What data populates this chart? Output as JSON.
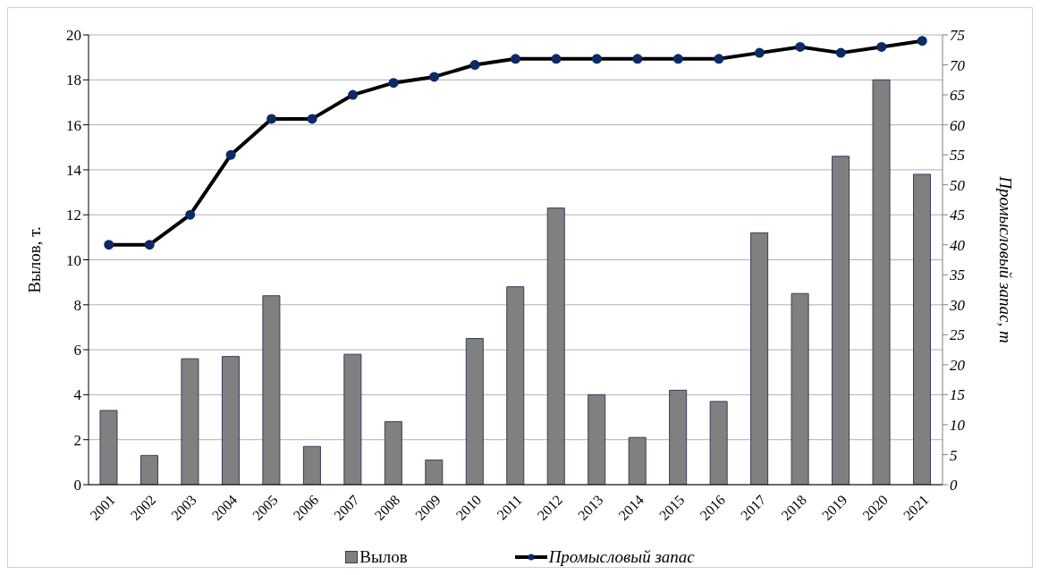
{
  "chart_data": {
    "type": "bar",
    "categories": [
      "2001",
      "2002",
      "2003",
      "2004",
      "2005",
      "2006",
      "2007",
      "2008",
      "2009",
      "2010",
      "2011",
      "2012",
      "2013",
      "2014",
      "2015",
      "2016",
      "2017",
      "2018",
      "2019",
      "2020",
      "2021"
    ],
    "series": [
      {
        "name": "Вылов",
        "color": "#808080",
        "values": [
          3.3,
          1.3,
          5.6,
          5.7,
          8.4,
          1.7,
          5.8,
          2.8,
          1.1,
          6.5,
          8.8,
          12.3,
          4.0,
          2.1,
          4.2,
          3.7,
          11.2,
          8.5,
          14.6,
          18.0,
          13.8
        ]
      },
      {
        "name": "Промысловый запас",
        "type": "line",
        "axis": "y2",
        "color": "#000000",
        "values": [
          40,
          40,
          45,
          55,
          61,
          61,
          65,
          67,
          68,
          70,
          71,
          71,
          71,
          71,
          71,
          71,
          72,
          73,
          72,
          73,
          74
        ]
      }
    ],
    "ylabel": "Вылов, т.",
    "y2label": "Промысловый запас, т",
    "ylim": [
      0,
      20
    ],
    "yticks": [
      0,
      2,
      4,
      6,
      8,
      10,
      12,
      14,
      16,
      18,
      20
    ],
    "y2lim": [
      0,
      75
    ],
    "y2ticks": [
      0,
      5,
      10,
      15,
      20,
      25,
      30,
      35,
      40,
      45,
      50,
      55,
      60,
      65,
      70,
      75
    ],
    "grid": "y",
    "legend": "bottom",
    "marker": "circle"
  }
}
